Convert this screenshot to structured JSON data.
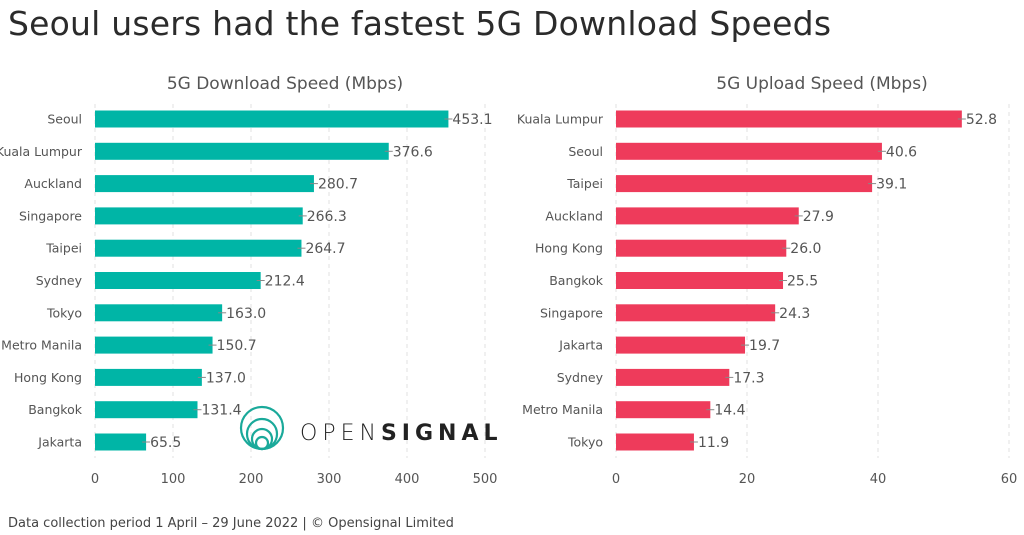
{
  "title": "Seoul users had the fastest 5G Download Speeds",
  "footer": "Data collection period 1 April – 29 June 2022  |  © Opensignal Limited",
  "logo": {
    "text_light": "OPEN",
    "text_bold": "SIGNAL",
    "color": "#1aa99a"
  },
  "chart_data": [
    {
      "type": "bar",
      "orientation": "horizontal",
      "title": "5G Download Speed (Mbps)",
      "categories": [
        "Seoul",
        "Kuala Lumpur",
        "Auckland",
        "Singapore",
        "Taipei",
        "Sydney",
        "Tokyo",
        "Metro Manila",
        "Hong Kong",
        "Bangkok",
        "Jakarta"
      ],
      "values": [
        453.1,
        376.6,
        280.7,
        266.3,
        264.7,
        212.4,
        163.0,
        150.7,
        137.0,
        131.4,
        65.5
      ],
      "labels": [
        "453.1",
        "376.6",
        "280.7",
        "266.3",
        "264.7",
        "212.4",
        "163.0",
        "150.7",
        "137.0",
        "131.4",
        "65.5"
      ],
      "xlim": [
        0,
        500
      ],
      "ticks": [
        "0",
        "100",
        "200",
        "300",
        "400",
        "500"
      ],
      "grid": true,
      "error_bars": true,
      "color": "#00b5a6"
    },
    {
      "type": "bar",
      "orientation": "horizontal",
      "title": "5G Upload Speed (Mbps)",
      "categories": [
        "Kuala Lumpur",
        "Seoul",
        "Taipei",
        "Auckland",
        "Hong Kong",
        "Bangkok",
        "Singapore",
        "Jakarta",
        "Sydney",
        "Metro Manila",
        "Tokyo"
      ],
      "values": [
        52.8,
        40.6,
        39.1,
        27.9,
        26.0,
        25.5,
        24.3,
        19.7,
        17.3,
        14.4,
        11.9
      ],
      "labels": [
        "52.8",
        "40.6",
        "39.1",
        "27.9",
        "26.0",
        "25.5",
        "24.3",
        "19.7",
        "17.3",
        "14.4",
        "11.9"
      ],
      "xlim": [
        0,
        60
      ],
      "ticks": [
        "0",
        "20",
        "40",
        "60"
      ],
      "grid": true,
      "error_bars": true,
      "color": "#ee3b5b"
    }
  ]
}
